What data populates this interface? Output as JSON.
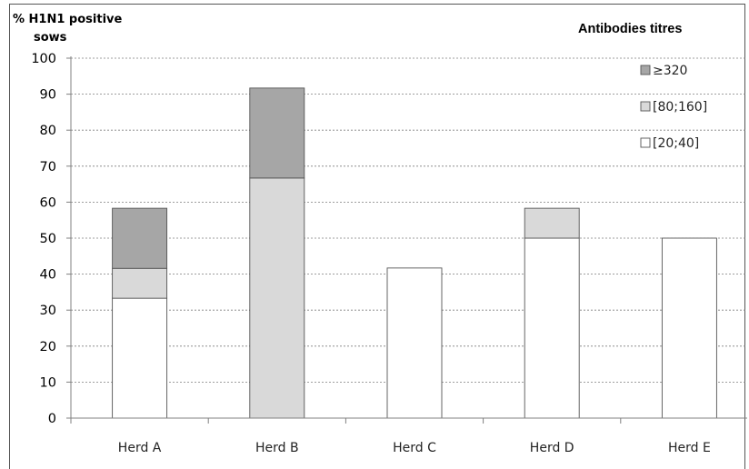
{
  "chart_data": {
    "type": "bar",
    "stacked": true,
    "ylabel_line1": "% H1N1 positive",
    "ylabel_line2": "sows",
    "legend_title": "Antibodies titres",
    "categories": [
      "Herd A",
      "Herd B",
      "Herd C",
      "Herd D",
      "Herd E"
    ],
    "series": [
      {
        "name": "[20;40]",
        "color": "#ffffff",
        "values": [
          33.3,
          0,
          41.7,
          50,
          50
        ]
      },
      {
        "name": "[80;160]",
        "color": "#d9d9d9",
        "values": [
          8.3,
          66.7,
          0,
          8.3,
          0
        ]
      },
      {
        "name": "≥320",
        "color": "#a6a6a6",
        "values": [
          16.7,
          25,
          0,
          0,
          0
        ]
      }
    ],
    "legend_order": [
      "≥320",
      "[80;160]",
      "[20;40]"
    ],
    "ylim": [
      0,
      100
    ],
    "yticks": [
      "0",
      "10",
      "20",
      "30",
      "40",
      "50",
      "60",
      "70",
      "80",
      "90",
      "100"
    ],
    "grid": true,
    "legend_position": "top-right"
  }
}
